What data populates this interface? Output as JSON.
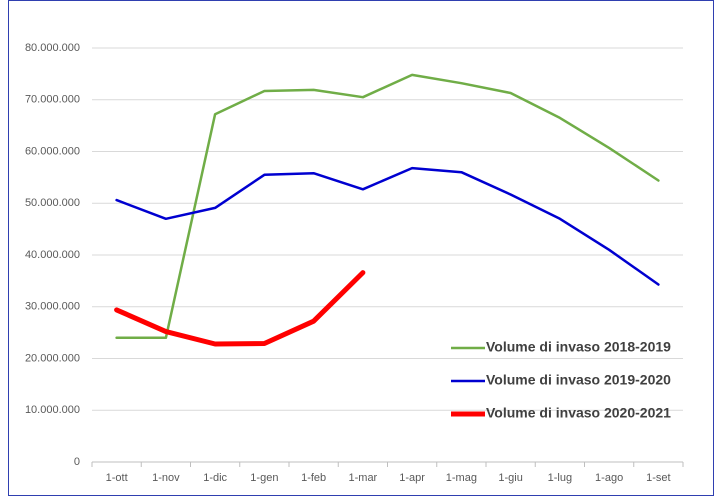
{
  "chart_data": {
    "type": "line",
    "categories": [
      "1-ott",
      "1-nov",
      "1-dic",
      "1-gen",
      "1-feb",
      "1-mar",
      "1-apr",
      "1-mag",
      "1-giu",
      "1-lug",
      "1-ago",
      "1-set"
    ],
    "series": [
      {
        "name": "Volume di invaso 2018-2019",
        "color": "#70ad47",
        "values": [
          24000000,
          24000000,
          67200000,
          71700000,
          71900000,
          70500000,
          74800000,
          73200000,
          71300000,
          66500000,
          60700000,
          54400000
        ]
      },
      {
        "name": "Volume di invaso 2019-2020",
        "color": "#0000d0",
        "values": [
          50600000,
          47000000,
          49100000,
          55500000,
          55800000,
          52700000,
          56800000,
          56000000,
          51700000,
          47000000,
          41000000,
          34300000
        ]
      },
      {
        "name": "Volume di invaso 2020-2021",
        "color": "#ff0000",
        "values": [
          29400000,
          25200000,
          22800000,
          22900000,
          27200000,
          36600000,
          null,
          null,
          null,
          null,
          null,
          null
        ]
      }
    ],
    "ylim": [
      0,
      80000000
    ],
    "yticks": [
      0,
      {
        "value": 10000000,
        "label": "10.000.000"
      },
      {
        "value": 20000000,
        "label": "20.000.000"
      },
      {
        "value": 30000000,
        "label": "30.000.000"
      },
      {
        "value": 40000000,
        "label": "40.000.000"
      },
      {
        "value": 50000000,
        "label": "50.000.000"
      },
      {
        "value": 60000000,
        "label": "60.000.000"
      },
      {
        "value": 70000000,
        "label": "70.000.000"
      },
      {
        "value": 80000000,
        "label": "80.000.000"
      }
    ],
    "grid": true
  }
}
